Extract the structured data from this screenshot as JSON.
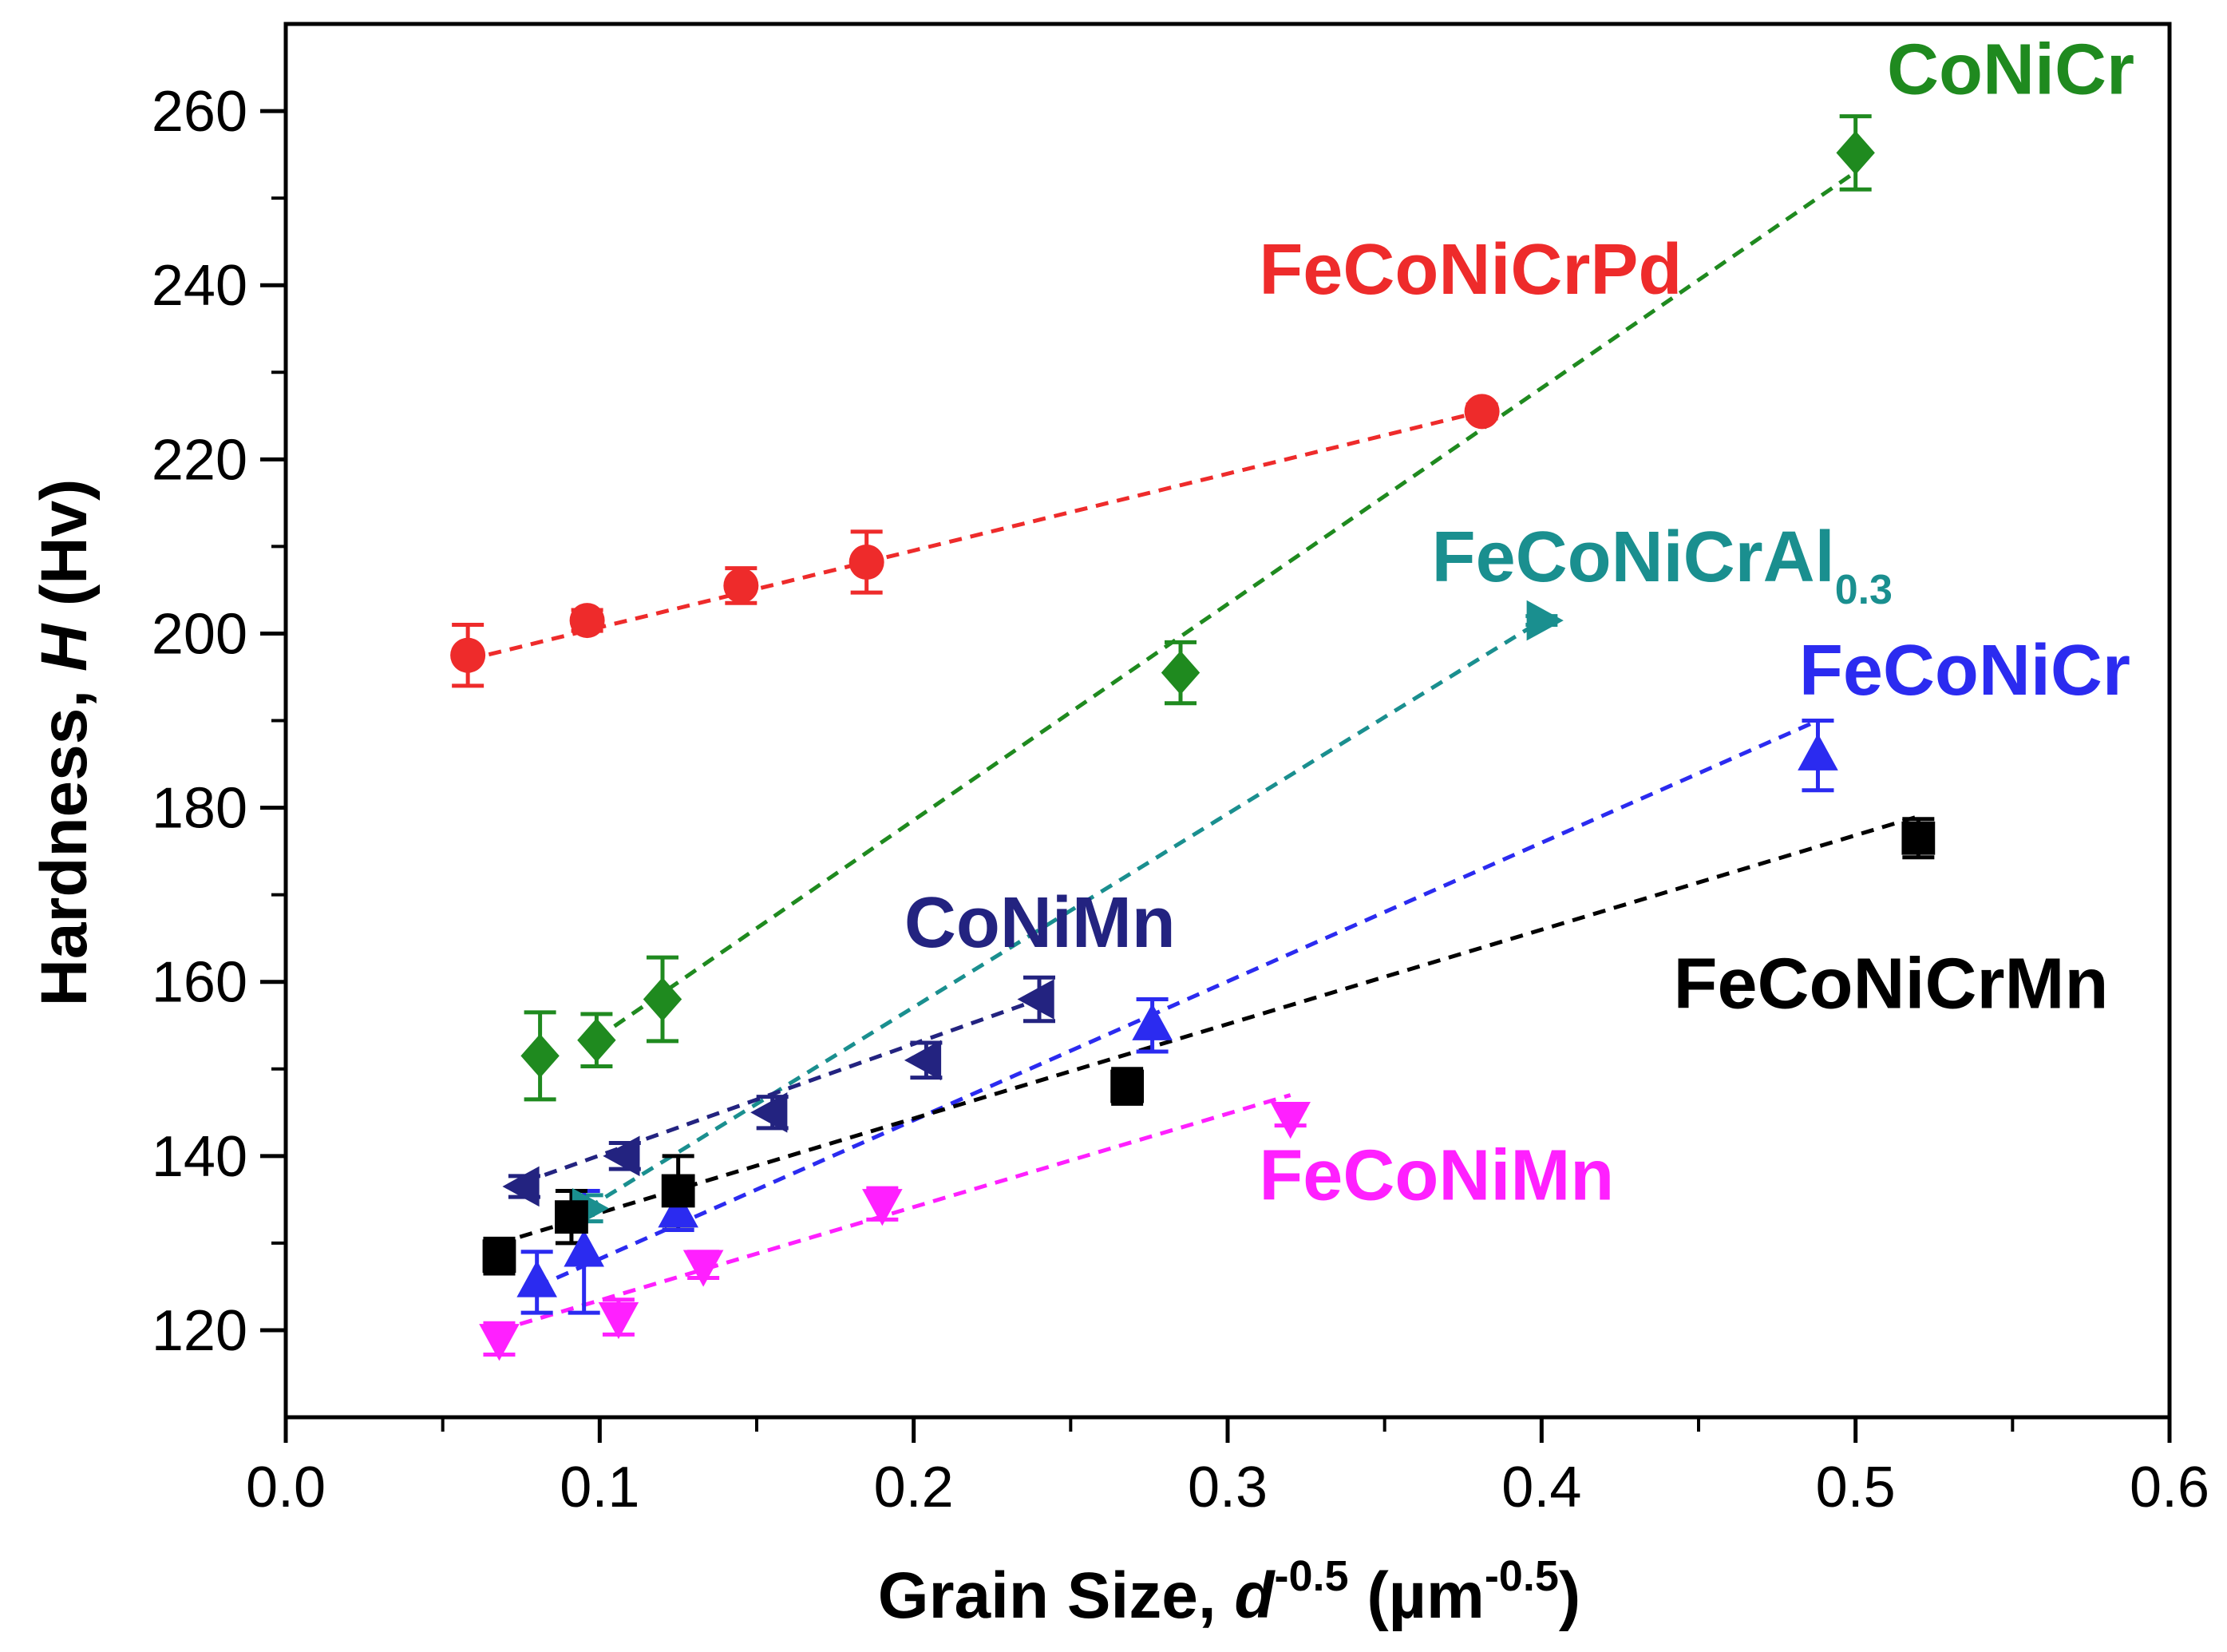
{
  "chart_data": {
    "type": "scatter",
    "title": "",
    "xlabel": {
      "prefix": "Grain Size, ",
      "var": "d",
      "sup": "-0.5",
      "unit_open": " (µm",
      "unit_sup": "-0.5",
      "unit_close": ")"
    },
    "ylabel": {
      "prefix": "Hardness, ",
      "var": "H",
      "unit": " (Hv)"
    },
    "xlim": [
      0.0,
      0.6
    ],
    "ylim": [
      110,
      270
    ],
    "x_ticks": [
      0.0,
      0.1,
      0.2,
      0.3,
      0.4,
      0.5,
      0.6
    ],
    "x_tick_labels": [
      "0.0",
      "0.1",
      "0.2",
      "0.3",
      "0.4",
      "0.5",
      "0.6"
    ],
    "y_ticks": [
      120,
      140,
      160,
      180,
      200,
      220,
      240,
      260
    ],
    "y_tick_labels": [
      "120",
      "140",
      "160",
      "180",
      "200",
      "220",
      "240",
      "260"
    ],
    "grid": false,
    "legend": "inline labels next to each series",
    "series": [
      {
        "name": "FeCoNiCrPd",
        "label_text": "FeCoNiCrPd",
        "label_sub": "",
        "color": "#ee2b2b",
        "marker": "circle",
        "x": [
          0.058,
          0.096,
          0.145,
          0.185,
          0.381
        ],
        "y": [
          197.5,
          201.5,
          205.5,
          208.2,
          225.5
        ],
        "err": [
          3.5,
          1.2,
          2.0,
          3.5,
          0.8
        ],
        "fit": {
          "x": [
            0.058,
            0.381
          ],
          "y": [
            197,
            225.5
          ]
        },
        "label_pos": {
          "x": 0.31,
          "y": 239
        }
      },
      {
        "name": "CoNiCr",
        "label_text": "CoNiCr",
        "label_sub": "",
        "color": "#1f8a1f",
        "marker": "diamond",
        "x": [
          0.081,
          0.099,
          0.12,
          0.285,
          0.5
        ],
        "y": [
          151.5,
          153.3,
          158.0,
          195.5,
          255.2
        ],
        "err": [
          5.0,
          3.0,
          4.8,
          3.5,
          4.2
        ],
        "fit": {
          "x": [
            0.099,
            0.5
          ],
          "y": [
            153.5,
            253
          ]
        },
        "label_pos": {
          "x": 0.51,
          "y": 262
        }
      },
      {
        "name": "FeCoNiCrAl0.3",
        "label_text": "FeCoNiCrAl",
        "label_sub": "0.3",
        "color": "#1a8f8f",
        "marker": "triangle-right",
        "x": [
          0.096,
          0.4
        ],
        "y": [
          134.0,
          201.5
        ],
        "err": [
          1.5,
          0.5
        ],
        "fit": {
          "x": [
            0.096,
            0.4
          ],
          "y": [
            134,
            201.5
          ]
        },
        "label_pos": {
          "x": 0.365,
          "y": 206
        }
      },
      {
        "name": "FeCoNiCr",
        "label_text": "FeCoNiCr",
        "label_sub": "",
        "color": "#2b2bf0",
        "marker": "triangle-up",
        "x": [
          0.08,
          0.095,
          0.125,
          0.276,
          0.488
        ],
        "y": [
          125.5,
          129.0,
          133.5,
          155.0,
          186.0
        ],
        "err": [
          3.5,
          7.0,
          2.0,
          3.0,
          4.0
        ],
        "fit": {
          "x": [
            0.08,
            0.488
          ],
          "y": [
            125,
            190
          ]
        },
        "label_pos": {
          "x": 0.482,
          "y": 193
        }
      },
      {
        "name": "FeCoNiCrMn",
        "label_text": "FeCoNiCrMn",
        "label_sub": "",
        "color": "#000000",
        "marker": "square",
        "x": [
          0.068,
          0.091,
          0.125,
          0.268,
          0.52
        ],
        "y": [
          128.5,
          133.0,
          136.0,
          148.0,
          176.5
        ],
        "err": [
          2.0,
          3.0,
          4.0,
          2.0,
          2.2
        ],
        "fit": {
          "x": [
            0.068,
            0.52
          ],
          "y": [
            130,
            179
          ]
        },
        "label_pos": {
          "x": 0.442,
          "y": 157
        }
      },
      {
        "name": "CoNiMn",
        "label_text": "CoNiMn",
        "label_sub": "",
        "color": "#232380",
        "marker": "triangle-left",
        "x": [
          0.076,
          0.108,
          0.155,
          0.204,
          0.24
        ],
        "y": [
          136.5,
          140.0,
          145.0,
          151.0,
          158.0
        ],
        "err": [
          1.2,
          1.5,
          1.8,
          2.0,
          2.5
        ],
        "fit": {
          "x": [
            0.076,
            0.24
          ],
          "y": [
            137,
            158
          ]
        },
        "label_pos": {
          "x": 0.197,
          "y": 164
        }
      },
      {
        "name": "FeCoNiMn",
        "label_text": "FeCoNiMn",
        "label_sub": "",
        "color": "#ff20ff",
        "marker": "triangle-down",
        "x": [
          0.068,
          0.106,
          0.133,
          0.19,
          0.32
        ],
        "y": [
          119.0,
          121.5,
          127.5,
          134.5,
          144.5
        ],
        "err": [
          1.8,
          2.0,
          1.5,
          1.8,
          1.0
        ],
        "fit": {
          "x": [
            0.068,
            0.32
          ],
          "y": [
            120,
            147
          ]
        },
        "label_pos": {
          "x": 0.31,
          "y": 135
        }
      }
    ]
  }
}
